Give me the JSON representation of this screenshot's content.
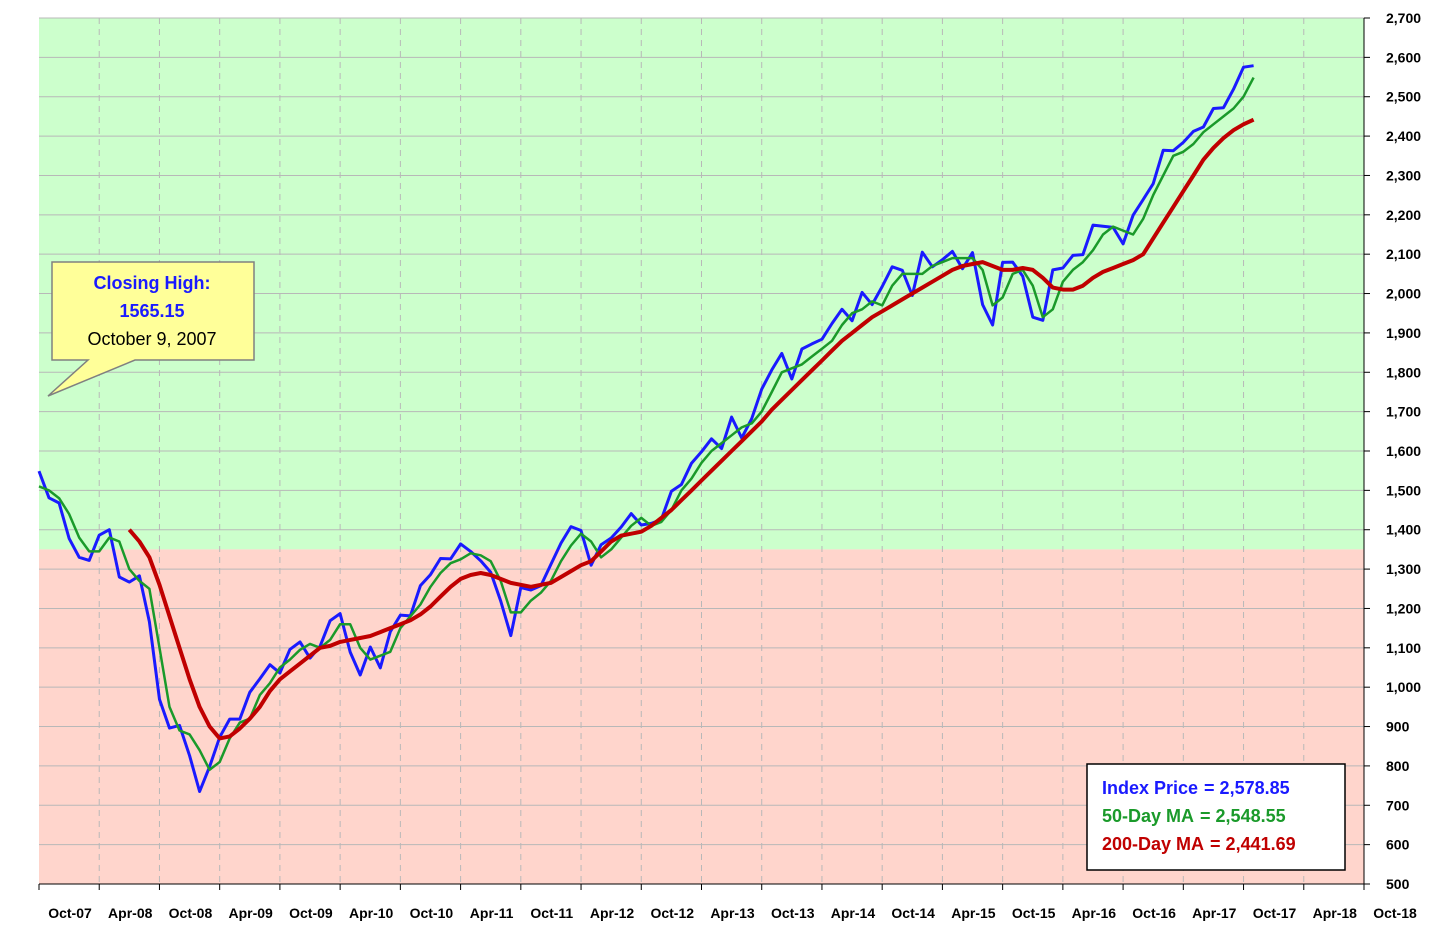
{
  "chart_data": {
    "type": "line",
    "x": [
      "Oct-07",
      "Nov-07",
      "Dec-07",
      "Jan-08",
      "Feb-08",
      "Mar-08",
      "Apr-08",
      "May-08",
      "Jun-08",
      "Jul-08",
      "Aug-08",
      "Sep-08",
      "Oct-08",
      "Nov-08",
      "Dec-08",
      "Jan-09",
      "Feb-09",
      "Mar-09",
      "Apr-09",
      "May-09",
      "Jun-09",
      "Jul-09",
      "Aug-09",
      "Sep-09",
      "Oct-09",
      "Nov-09",
      "Dec-09",
      "Jan-10",
      "Feb-10",
      "Mar-10",
      "Apr-10",
      "May-10",
      "Jun-10",
      "Jul-10",
      "Aug-10",
      "Sep-10",
      "Oct-10",
      "Nov-10",
      "Dec-10",
      "Jan-11",
      "Feb-11",
      "Mar-11",
      "Apr-11",
      "May-11",
      "Jun-11",
      "Jul-11",
      "Aug-11",
      "Sep-11",
      "Oct-11",
      "Nov-11",
      "Dec-11",
      "Jan-12",
      "Feb-12",
      "Mar-12",
      "Apr-12",
      "May-12",
      "Jun-12",
      "Jul-12",
      "Aug-12",
      "Sep-12",
      "Oct-12",
      "Nov-12",
      "Dec-12",
      "Jan-13",
      "Feb-13",
      "Mar-13",
      "Apr-13",
      "May-13",
      "Jun-13",
      "Jul-13",
      "Aug-13",
      "Sep-13",
      "Oct-13",
      "Nov-13",
      "Dec-13",
      "Jan-14",
      "Feb-14",
      "Mar-14",
      "Apr-14",
      "May-14",
      "Jun-14",
      "Jul-14",
      "Aug-14",
      "Sep-14",
      "Oct-14",
      "Nov-14",
      "Dec-14",
      "Jan-15",
      "Feb-15",
      "Mar-15",
      "Apr-15",
      "May-15",
      "Jun-15",
      "Jul-15",
      "Aug-15",
      "Sep-15",
      "Oct-15",
      "Nov-15",
      "Dec-15",
      "Jan-16",
      "Feb-16",
      "Mar-16",
      "Apr-16",
      "May-16",
      "Jun-16",
      "Jul-16",
      "Aug-16",
      "Sep-16",
      "Oct-16",
      "Nov-16",
      "Dec-16",
      "Jan-17",
      "Feb-17",
      "Mar-17",
      "Apr-17",
      "May-17",
      "Jun-17",
      "Jul-17",
      "Aug-17",
      "Sep-17",
      "Oct-17",
      "Nov-17",
      "Dec-17",
      "Jan-18",
      "Feb-18",
      "Mar-18",
      "Apr-18",
      "May-18",
      "Jun-18",
      "Jul-18",
      "Aug-18",
      "Sep-18",
      "Oct-18"
    ],
    "xticks": [
      "Oct-07",
      "Apr-08",
      "Oct-08",
      "Apr-09",
      "Oct-09",
      "Apr-10",
      "Oct-10",
      "Apr-11",
      "Oct-11",
      "Apr-12",
      "Oct-12",
      "Apr-13",
      "Oct-13",
      "Apr-14",
      "Oct-14",
      "Apr-15",
      "Oct-15",
      "Apr-16",
      "Oct-16",
      "Apr-17",
      "Oct-17",
      "Apr-18",
      "Oct-18"
    ],
    "series": [
      {
        "name": "Index Price",
        "legend_value": "=  2,578.85",
        "color": "#1a1aff",
        "width": 3,
        "values": [
          1549,
          1481,
          1468,
          1378,
          1330,
          1322,
          1386,
          1400,
          1280,
          1267,
          1283,
          1166,
          969,
          896,
          903,
          826,
          735,
          798,
          873,
          919,
          919,
          987,
          1021,
          1057,
          1036,
          1096,
          1115,
          1074,
          1104,
          1169,
          1187,
          1089,
          1031,
          1102,
          1049,
          1141,
          1183,
          1181,
          1258,
          1286,
          1327,
          1326,
          1364,
          1345,
          1321,
          1292,
          1219,
          1131,
          1253,
          1247,
          1258,
          1312,
          1366,
          1408,
          1398,
          1310,
          1362,
          1379,
          1407,
          1441,
          1412,
          1416,
          1426,
          1498,
          1515,
          1569,
          1598,
          1631,
          1606,
          1686,
          1633,
          1682,
          1757,
          1806,
          1848,
          1783,
          1859,
          1872,
          1884,
          1924,
          1960,
          1931,
          2003,
          1972,
          2018,
          2068,
          2059,
          1995,
          2105,
          2068,
          2086,
          2107,
          2063,
          2104,
          1972,
          1920,
          2079,
          2080,
          2044,
          1940,
          1932,
          2060,
          2065,
          2097,
          2099,
          2174,
          2171,
          2168,
          2126,
          2199,
          2239,
          2279,
          2364,
          2363,
          2384,
          2412,
          2423,
          2470,
          2472,
          2519,
          2575,
          2578.85,
          null,
          null,
          null,
          null,
          null,
          null,
          null,
          null,
          null,
          null,
          null
        ]
      },
      {
        "name": "50-Day MA",
        "legend_value": "= 2,548.55",
        "color": "#1a9a2a",
        "width": 2.5,
        "values": [
          1510,
          1500,
          1480,
          1440,
          1380,
          1345,
          1345,
          1380,
          1370,
          1300,
          1270,
          1250,
          1100,
          950,
          890,
          880,
          840,
          790,
          810,
          870,
          910,
          920,
          980,
          1010,
          1050,
          1070,
          1095,
          1110,
          1100,
          1120,
          1160,
          1160,
          1100,
          1070,
          1080,
          1090,
          1150,
          1180,
          1210,
          1255,
          1290,
          1315,
          1325,
          1340,
          1335,
          1320,
          1270,
          1190,
          1190,
          1220,
          1240,
          1270,
          1320,
          1360,
          1390,
          1370,
          1330,
          1350,
          1380,
          1410,
          1430,
          1410,
          1420,
          1450,
          1500,
          1530,
          1570,
          1600,
          1620,
          1640,
          1660,
          1670,
          1700,
          1750,
          1800,
          1810,
          1820,
          1840,
          1860,
          1880,
          1920,
          1950,
          1960,
          1980,
          1970,
          2020,
          2050,
          2050,
          2050,
          2070,
          2080,
          2090,
          2090,
          2090,
          2060,
          1970,
          1990,
          2050,
          2060,
          2020,
          1940,
          1960,
          2030,
          2060,
          2080,
          2110,
          2150,
          2170,
          2160,
          2150,
          2190,
          2250,
          2300,
          2350,
          2360,
          2380,
          2410,
          2430,
          2450,
          2470,
          2500,
          2548.55,
          null,
          null,
          null,
          null,
          null,
          null,
          null,
          null,
          null,
          null,
          null
        ]
      },
      {
        "name": "200-Day MA",
        "legend_value": "= 2,441.69",
        "color": "#c00000",
        "width": 4,
        "values": [
          null,
          null,
          null,
          null,
          null,
          null,
          null,
          null,
          null,
          1400,
          1370,
          1330,
          1260,
          1180,
          1100,
          1020,
          950,
          900,
          870,
          875,
          895,
          920,
          950,
          990,
          1020,
          1040,
          1060,
          1080,
          1100,
          1105,
          1115,
          1120,
          1125,
          1130,
          1140,
          1150,
          1160,
          1170,
          1185,
          1205,
          1230,
          1255,
          1275,
          1285,
          1290,
          1285,
          1275,
          1265,
          1260,
          1255,
          1260,
          1265,
          1280,
          1295,
          1310,
          1320,
          1345,
          1370,
          1385,
          1390,
          1395,
          1410,
          1430,
          1450,
          1475,
          1500,
          1525,
          1550,
          1575,
          1600,
          1625,
          1650,
          1675,
          1705,
          1730,
          1755,
          1780,
          1805,
          1830,
          1855,
          1880,
          1900,
          1920,
          1940,
          1955,
          1970,
          1985,
          2000,
          2015,
          2030,
          2045,
          2060,
          2070,
          2075,
          2080,
          2070,
          2060,
          2060,
          2065,
          2060,
          2040,
          2015,
          2010,
          2010,
          2020,
          2040,
          2055,
          2065,
          2075,
          2085,
          2100,
          2140,
          2180,
          2220,
          2260,
          2300,
          2340,
          2370,
          2395,
          2415,
          2430,
          2441.69,
          null,
          null,
          null,
          null,
          null,
          null,
          null,
          null,
          null,
          null,
          null
        ]
      }
    ],
    "ylim": [
      500,
      2700
    ],
    "yticks": [
      500,
      600,
      700,
      800,
      900,
      {
        "value": 1000,
        "label": "1,000"
      },
      {
        "value": 1100,
        "label": "1,100"
      },
      {
        "value": 1200,
        "label": "1,200"
      },
      {
        "value": 1300,
        "label": "1,300"
      },
      {
        "value": 1400,
        "label": "1,400"
      },
      {
        "value": 1500,
        "label": "1,500"
      },
      {
        "value": 1600,
        "label": "1,600"
      },
      {
        "value": 1700,
        "label": "1,700"
      },
      {
        "value": 1800,
        "label": "1,800"
      },
      {
        "value": 1900,
        "label": "1,900"
      },
      {
        "value": 2000,
        "label": "2,000"
      },
      {
        "value": 2100,
        "label": "2,100"
      },
      {
        "value": 2200,
        "label": "2,200"
      },
      {
        "value": 2300,
        "label": "2,300"
      },
      {
        "value": 2400,
        "label": "2,400"
      },
      {
        "value": 2500,
        "label": "2,500"
      },
      {
        "value": 2600,
        "label": "2,600"
      },
      {
        "value": 2700,
        "label": "2,700"
      }
    ],
    "threshold": 1350,
    "upper_color": "#ccffcc",
    "lower_color": "#ffd5cc",
    "grid": true,
    "legend": "lower right",
    "callout": {
      "line1": "Closing High:",
      "line2": "1565.15",
      "line3": "October 9, 2007"
    }
  }
}
